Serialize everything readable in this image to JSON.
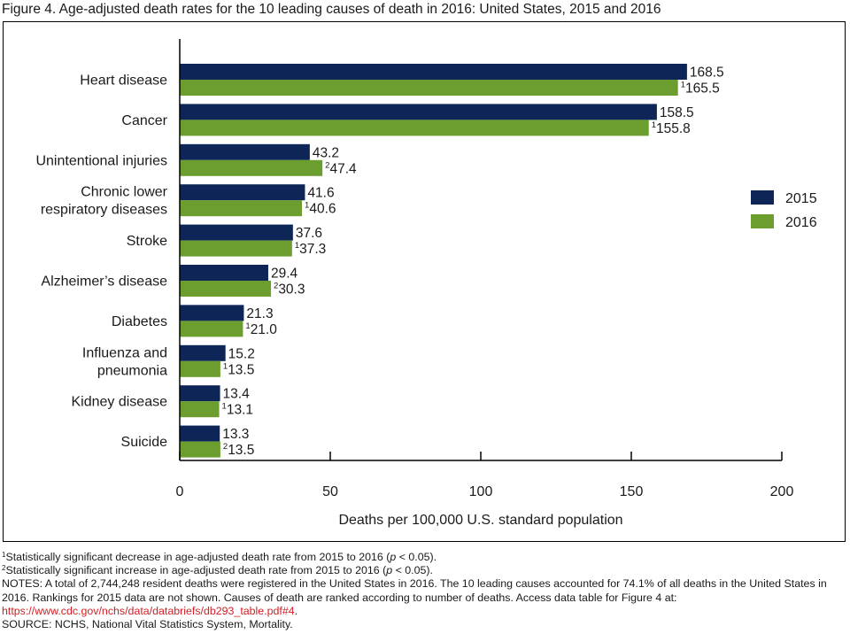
{
  "figure_title": "Figure 4. Age-adjusted death rates for the 10 leading causes of death in 2016: United States, 2015 and 2016",
  "colors": {
    "s2015": "#0d2657",
    "s2016": "#6b9e2e"
  },
  "chart_data": {
    "type": "bar",
    "orientation": "horizontal",
    "title": "Figure 4. Age-adjusted death rates for the 10 leading causes of death in 2016: United States, 2015 and 2016",
    "categories": [
      [
        "Heart disease"
      ],
      [
        "Cancer"
      ],
      [
        "Unintentional injuries"
      ],
      [
        "Chronic lower",
        "respiratory diseases"
      ],
      [
        "Stroke"
      ],
      [
        "Alzheimer’s disease"
      ],
      [
        "Diabetes"
      ],
      [
        "Influenza and",
        "pneumonia"
      ],
      [
        "Kidney disease"
      ],
      [
        "Suicide"
      ]
    ],
    "series": [
      {
        "name": "2015",
        "values": [
          168.5,
          158.5,
          43.2,
          41.6,
          37.6,
          29.4,
          21.3,
          15.2,
          13.4,
          13.3
        ],
        "labels": [
          "168.5",
          "158.5",
          "43.2",
          "41.6",
          "37.6",
          "29.4",
          "21.3",
          "15.2",
          "13.4",
          "13.3"
        ],
        "marks": [
          "",
          "",
          "",
          "",
          "",
          "",
          "",
          "",
          "",
          ""
        ]
      },
      {
        "name": "2016",
        "values": [
          165.5,
          155.8,
          47.4,
          40.6,
          37.3,
          30.3,
          21.0,
          13.5,
          13.1,
          13.5
        ],
        "labels": [
          "165.5",
          "155.8",
          "47.4",
          "40.6",
          "37.3",
          "30.3",
          "21.0",
          "13.5",
          "13.1",
          "13.5"
        ],
        "marks": [
          "1",
          "1",
          "2",
          "1",
          "1",
          "2",
          "1",
          "1",
          "1",
          "2"
        ]
      }
    ],
    "xlabel": "Deaths per 100,000 U.S. standard population",
    "ylabel": "",
    "xlim": [
      0,
      200
    ],
    "xticks": [
      0,
      50,
      100,
      150,
      200
    ],
    "xtick_labels": [
      "0",
      "50",
      "100",
      "150",
      "200"
    ],
    "legend": {
      "position": "right",
      "entries": [
        "2015",
        "2016"
      ]
    },
    "grid": false
  },
  "footnotes": {
    "fn1_mark": "1",
    "fn1_text": "Statistically significant decrease in age-adjusted death rate from 2015 to 2016 (",
    "fn2_mark": "2",
    "fn2_text": "Statistically significant increase in age-adjusted death rate from 2015 to 2016 (",
    "p_symbol": "p",
    "p_tail": " < 0.05).",
    "notes": "NOTES: A total of 2,744,248 resident deaths were registered in the United States in 2016. The 10 leading causes accounted for 74.1% of all deaths in the United States in 2016. Rankings for 2015 data are not shown. Causes of death are ranked according to number of deaths. Access data table for Figure 4 at:",
    "link": "https://www.cdc.gov/nchs/data/databriefs/db293_table.pdf#4",
    "link_tail": ".",
    "source": "SOURCE: NCHS, National Vital Statistics System, Mortality."
  }
}
